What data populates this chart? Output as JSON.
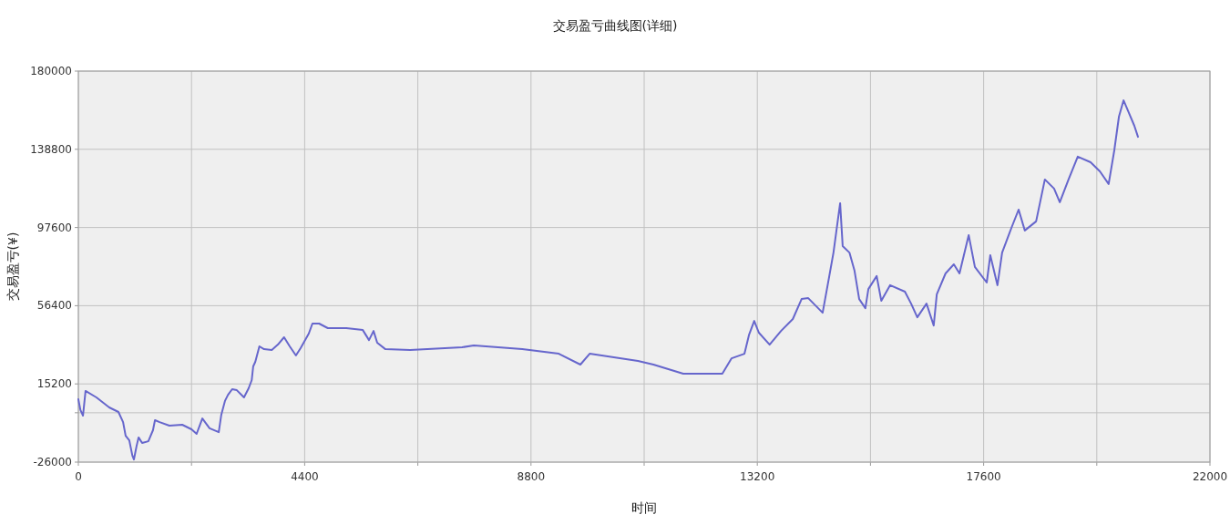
{
  "chart_data": {
    "type": "line",
    "title": "交易盈亏曲线图(详细)",
    "xlabel": "时间",
    "ylabel": "交易盈亏(¥)",
    "xlim": [
      0,
      22000
    ],
    "ylim": [
      -26000,
      180000
    ],
    "xticks": [
      0,
      {
        "value": 2200,
        "label": null
      },
      4400,
      {
        "value": 6600,
        "label": null
      },
      8800,
      {
        "value": 11000,
        "label": null
      },
      13200,
      {
        "value": 15400,
        "label": null
      },
      17600,
      {
        "value": 19800,
        "label": null
      },
      22000
    ],
    "yticks": [
      -26000,
      {
        "value": 0,
        "label": null
      },
      15200,
      56400,
      97600,
      138800,
      180000
    ],
    "grid": true,
    "marker": "none",
    "line_style": "solid",
    "series": [
      {
        "color": "#6666cc",
        "x": [
          0,
          40,
          90,
          140,
          350,
          600,
          780,
          870,
          920,
          990,
          1050,
          1080,
          1130,
          1170,
          1240,
          1360,
          1450,
          1490,
          1580,
          1770,
          2020,
          2200,
          2300,
          2410,
          2550,
          2730,
          2780,
          2850,
          2910,
          2990,
          3080,
          3220,
          3310,
          3370,
          3400,
          3440,
          3520,
          3610,
          3760,
          3880,
          4000,
          4110,
          4230,
          4320,
          4480,
          4550,
          4680,
          4850,
          5210,
          5530,
          5650,
          5740,
          5810,
          5970,
          6450,
          7460,
          7690,
          8630,
          9340,
          9760,
          9940,
          10880,
          11180,
          11760,
          12520,
          12700,
          12950,
          13040,
          13140,
          13230,
          13440,
          13660,
          13890,
          14060,
          14190,
          14470,
          14600,
          14680,
          14810,
          14860,
          14990,
          15090,
          15180,
          15300,
          15360,
          15520,
          15610,
          15780,
          16070,
          16190,
          16310,
          16490,
          16630,
          16690,
          16860,
          17020,
          17130,
          17310,
          17430,
          17660,
          17730,
          17870,
          17960,
          18140,
          18280,
          18400,
          18620,
          18790,
          18970,
          19080,
          19250,
          19430,
          19680,
          19860,
          20030,
          20140,
          20230,
          20320,
          20410,
          20530,
          20600
        ],
        "values": [
          7100,
          1400,
          -1500,
          11500,
          8100,
          2800,
          400,
          -4900,
          -12100,
          -14500,
          -22600,
          -24600,
          -17800,
          -13000,
          -15900,
          -15000,
          -9200,
          -3900,
          -4900,
          -6800,
          -6300,
          -8700,
          -11100,
          -3000,
          -8200,
          -10200,
          -1000,
          6200,
          9500,
          12400,
          11900,
          8100,
          12900,
          17200,
          24400,
          26800,
          35000,
          33500,
          33100,
          35900,
          39800,
          35000,
          30200,
          34000,
          41700,
          47000,
          47000,
          44600,
          44600,
          43600,
          38300,
          43100,
          36900,
          33500,
          33100,
          34500,
          35500,
          33500,
          31100,
          25400,
          31100,
          27300,
          25400,
          20600,
          20600,
          28700,
          31100,
          41200,
          48400,
          42200,
          35900,
          43100,
          49400,
          59900,
          60400,
          52700,
          72000,
          84400,
          110400,
          87800,
          84400,
          74800,
          59900,
          55100,
          65200,
          72000,
          59000,
          67200,
          63800,
          57500,
          50300,
          57500,
          46000,
          62400,
          73400,
          78200,
          73400,
          93600,
          76800,
          68600,
          83000,
          67200,
          84400,
          97400,
          107000,
          96000,
          100800,
          122900,
          118100,
          110900,
          122900,
          134900,
          132000,
          127200,
          120500,
          138200,
          156000,
          164600,
          158900,
          151200,
          145400
        ]
      }
    ]
  }
}
